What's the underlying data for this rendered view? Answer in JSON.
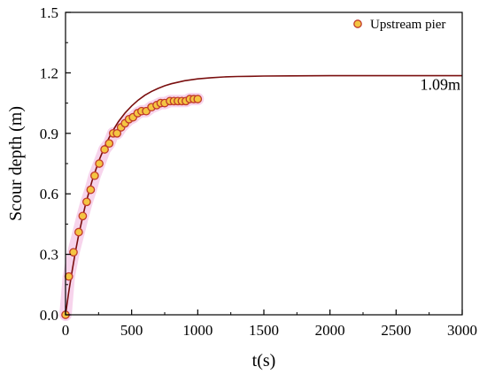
{
  "chart_data": {
    "type": "scatter",
    "title": "",
    "xlabel": "t(s)",
    "ylabel": "Scour depth (m)",
    "xlim": [
      0,
      3000
    ],
    "ylim": [
      0,
      1.5
    ],
    "x_ticks": [
      "0",
      "500",
      "1000",
      "1500",
      "2000",
      "2500",
      "3000"
    ],
    "y_ticks": [
      "0.0",
      "0.3",
      "0.6",
      "0.9",
      "1.2",
      "1.5"
    ],
    "grid": false,
    "legend_position": "top-right",
    "annotation": "1.09m",
    "colors": {
      "marker_edge": "#c0392b",
      "marker_fill": "#f4c542",
      "halo": "#f2b8e0",
      "fit_line": "#7a0f0f",
      "axis": "#000000"
    },
    "series": [
      {
        "name": "Upstream pier",
        "kind": "points",
        "x": [
          0,
          25,
          60,
          100,
          130,
          160,
          190,
          220,
          255,
          295,
          330,
          360,
          390,
          420,
          450,
          480,
          510,
          545,
          575,
          610,
          650,
          690,
          720,
          750,
          790,
          820,
          850,
          880,
          910,
          940,
          970,
          1000
        ],
        "y": [
          0.0,
          0.19,
          0.31,
          0.41,
          0.49,
          0.56,
          0.62,
          0.69,
          0.75,
          0.82,
          0.85,
          0.9,
          0.9,
          0.93,
          0.95,
          0.97,
          0.98,
          1.0,
          1.01,
          1.01,
          1.03,
          1.04,
          1.05,
          1.05,
          1.06,
          1.06,
          1.06,
          1.06,
          1.06,
          1.07,
          1.07,
          1.07
        ]
      },
      {
        "kind": "fit",
        "x": [
          0,
          25,
          50,
          75,
          100,
          150,
          200,
          250,
          300,
          350,
          400,
          450,
          500,
          550,
          600,
          650,
          700,
          750,
          800,
          900,
          1000,
          1100,
          1200,
          1300,
          1400,
          1500,
          1700,
          2000,
          2500,
          3000
        ],
        "y": [
          0.0,
          0.115,
          0.219,
          0.313,
          0.398,
          0.544,
          0.663,
          0.76,
          0.84,
          0.905,
          0.958,
          1.001,
          1.036,
          1.065,
          1.089,
          1.108,
          1.123,
          1.136,
          1.146,
          1.161,
          1.17,
          1.176,
          1.18,
          1.182,
          1.183,
          1.184,
          1.185,
          1.186,
          1.186,
          1.186
        ]
      }
    ]
  }
}
